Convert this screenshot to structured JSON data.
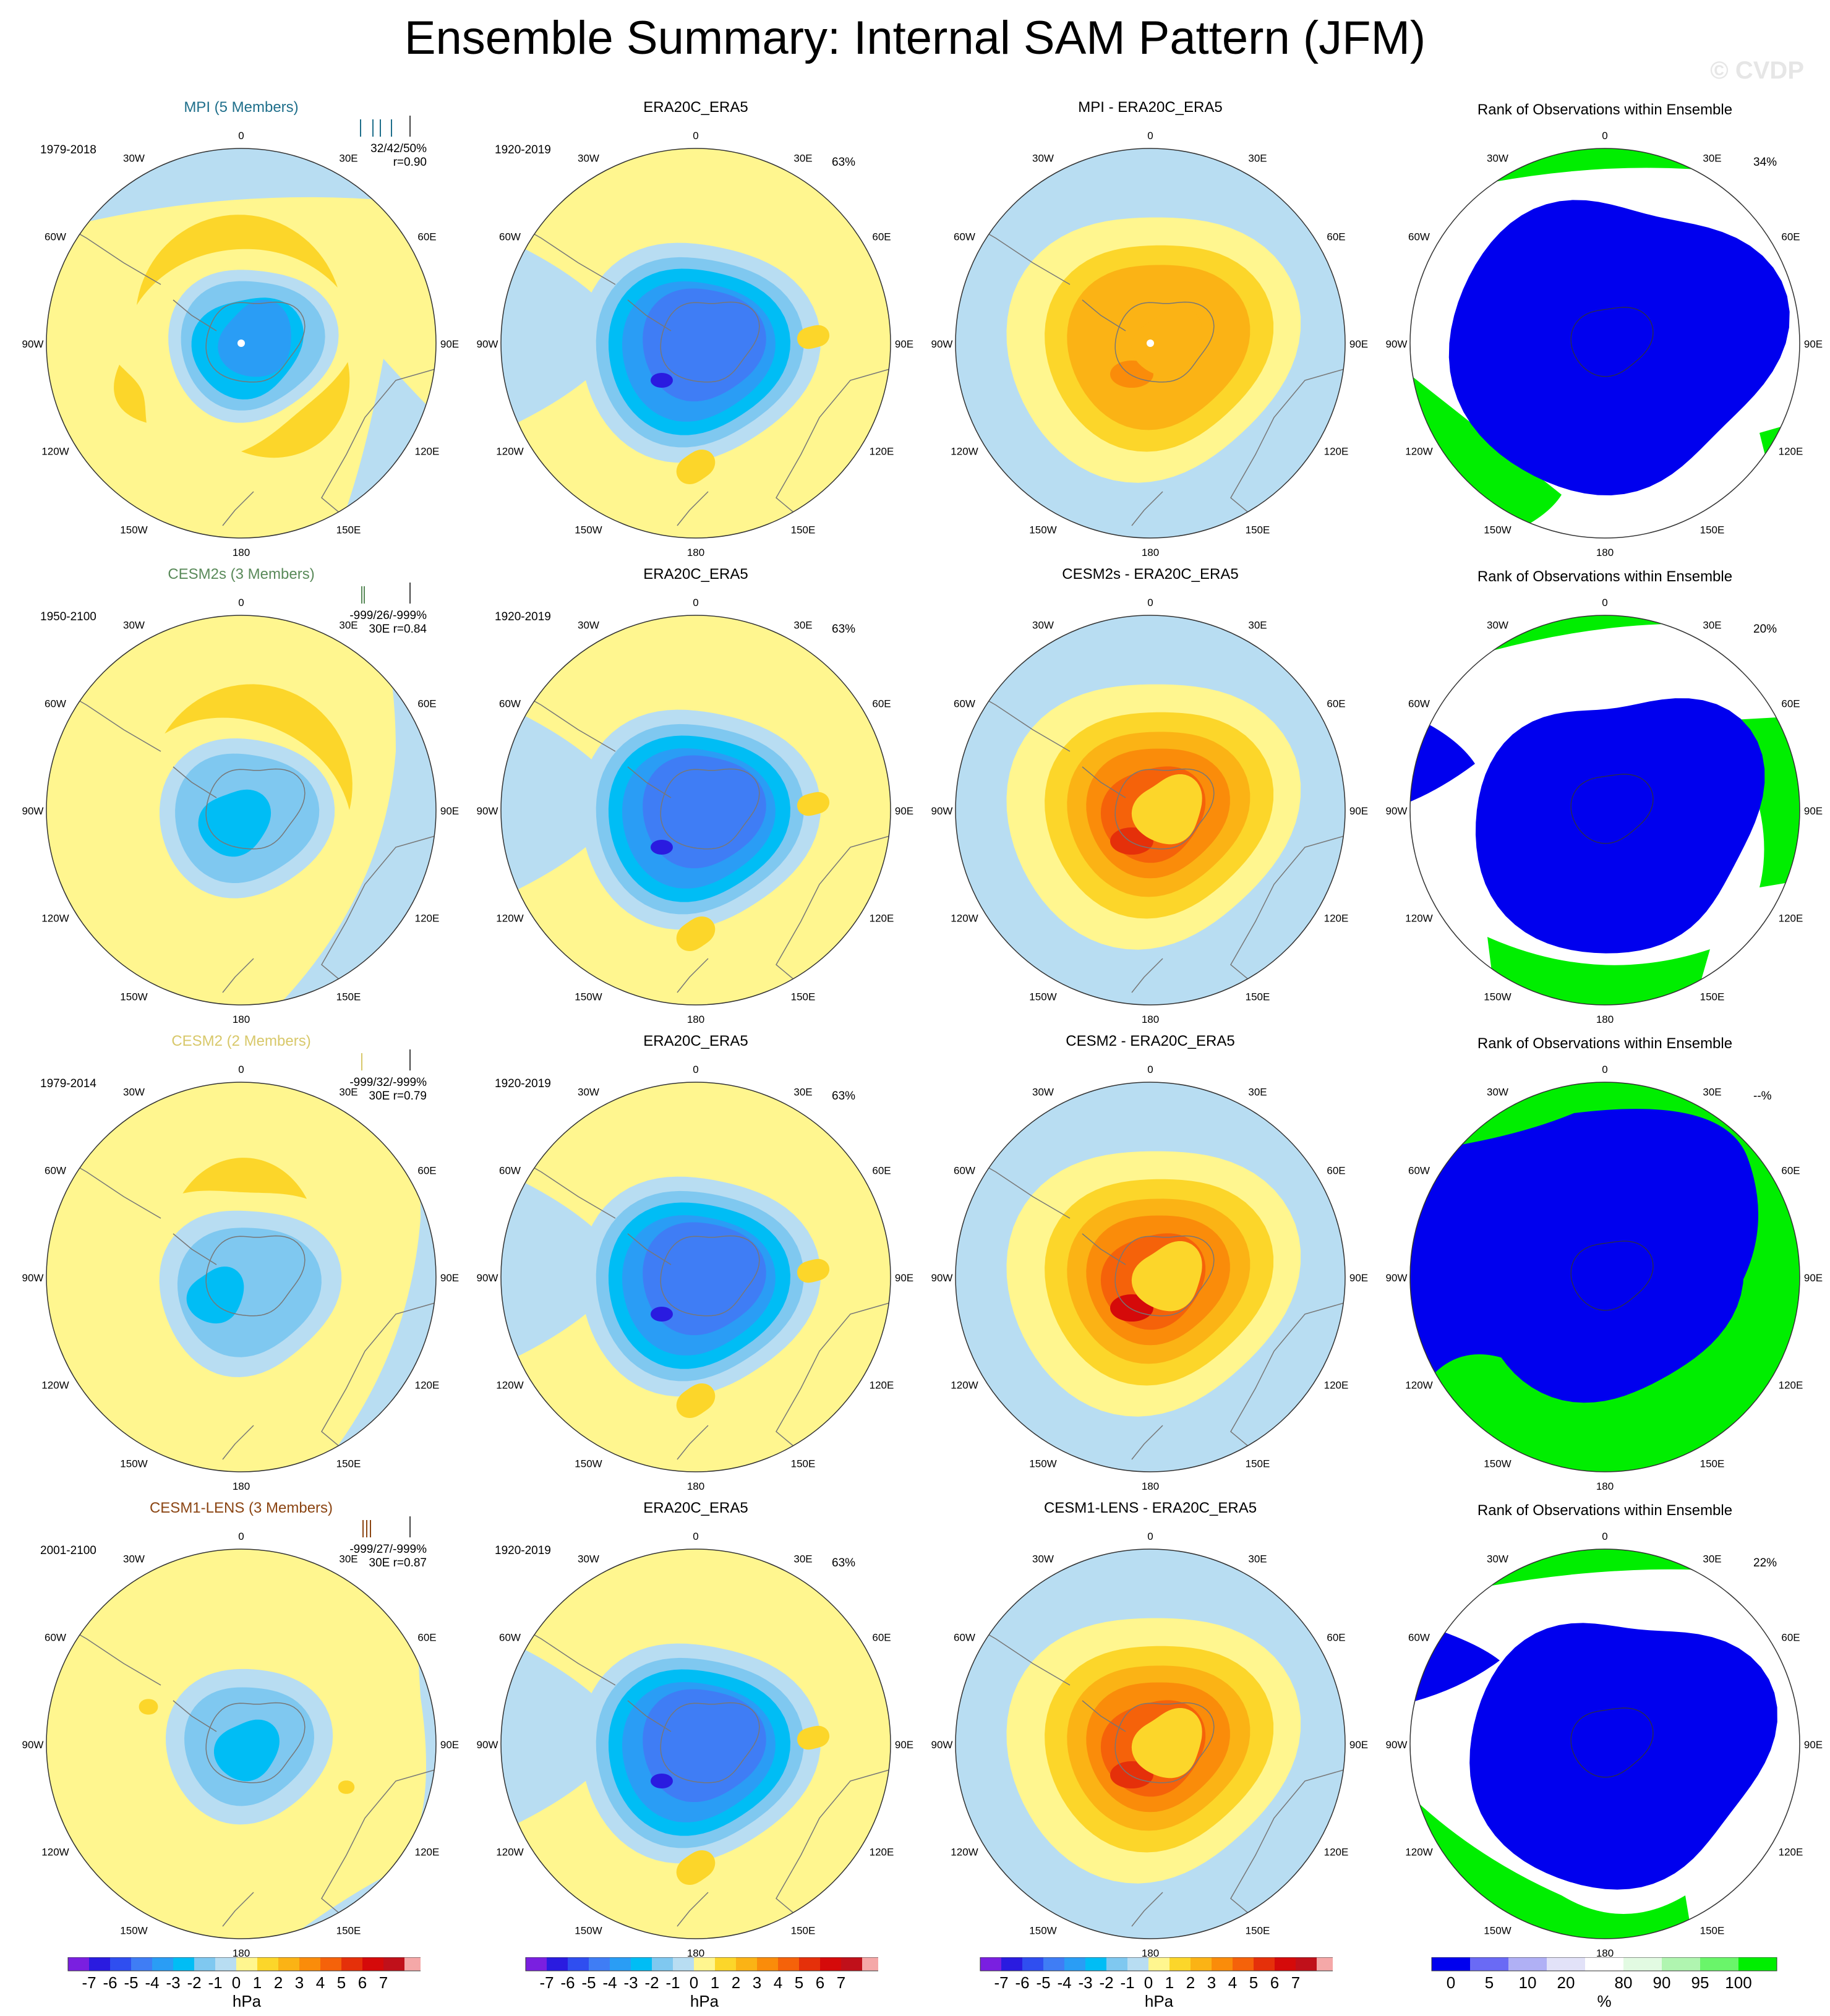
{
  "title": "Ensemble Summary: Internal SAM Pattern (JFM)",
  "watermark": "© CVDP",
  "lon_labels": [
    "0",
    "30E",
    "60E",
    "90E",
    "120E",
    "150E",
    "180",
    "150W",
    "120W",
    "90W",
    "60W",
    "30W"
  ],
  "rows": [
    {
      "model": {
        "label": "MPI (5 Members)",
        "color": "#1f6f8b",
        "period": "1979-2018",
        "stats_line1": "32/42/50%",
        "stats_line2": "r=0.90",
        "pattern": "mpi"
      },
      "obs": {
        "label": "ERA20C_ERA5",
        "period": "1920-2019",
        "pct": "63%"
      },
      "diff": {
        "label": "MPI - ERA20C_ERA5"
      },
      "rank": {
        "label": "Rank of Observations within Ensemble",
        "pct": "34%",
        "pattern": "r1"
      }
    },
    {
      "model": {
        "label": "CESM2s (3 Members)",
        "color": "#5a8a5a",
        "period": "1950-2100",
        "stats_line1": "-999/26/-999%",
        "stats_line2": "30E r=0.84",
        "pattern": "cesm2s"
      },
      "obs": {
        "label": "ERA20C_ERA5",
        "period": "1920-2019",
        "pct": "63%"
      },
      "diff": {
        "label": "CESM2s - ERA20C_ERA5"
      },
      "rank": {
        "label": "Rank of Observations within Ensemble",
        "pct": "20%",
        "pattern": "r2"
      }
    },
    {
      "model": {
        "label": "CESM2 (2 Members)",
        "color": "#d8c86a",
        "period": "1979-2014",
        "stats_line1": "-999/32/-999%",
        "stats_line2": "30E r=0.79",
        "pattern": "cesm2"
      },
      "obs": {
        "label": "ERA20C_ERA5",
        "period": "1920-2019",
        "pct": "63%"
      },
      "diff": {
        "label": "CESM2 - ERA20C_ERA5"
      },
      "rank": {
        "label": "Rank of Observations within Ensemble",
        "pct": "--%",
        "pattern": "r3"
      }
    },
    {
      "model": {
        "label": "CESM1-LENS (3 Members)",
        "color": "#8b4513",
        "period": "2001-2100",
        "stats_line1": "-999/27/-999%",
        "stats_line2": "30E r=0.87",
        "pattern": "cesm1"
      },
      "obs": {
        "label": "ERA20C_ERA5",
        "period": "1920-2019",
        "pct": "63%"
      },
      "diff": {
        "label": "CESM1-LENS - ERA20C_ERA5"
      },
      "rank": {
        "label": "Rank of Observations within Ensemble",
        "pct": "22%",
        "pattern": "r4"
      }
    }
  ],
  "colorbar_hpa": {
    "unit": "hPa",
    "ticks": [
      "-7",
      "-6",
      "-5",
      "-4",
      "-3",
      "-2",
      "-1",
      "0",
      "1",
      "2",
      "3",
      "4",
      "5",
      "6",
      "7"
    ],
    "colors": [
      "#7a1fe0",
      "#2a1be0",
      "#2f4ef0",
      "#3f7df5",
      "#2a9df5",
      "#00bdf5",
      "#7fc8f0",
      "#b8ddf2",
      "#fff68f",
      "#fcd62a",
      "#fbb315",
      "#fa8c0a",
      "#f5620a",
      "#e5300a",
      "#d50a0a",
      "#c0101a",
      "#f5a8a8"
    ]
  },
  "colorbar_rank": {
    "unit": "%",
    "ticks": [
      "0",
      "5",
      "10",
      "20",
      "80",
      "90",
      "95",
      "100"
    ],
    "colors": [
      "#0000ee",
      "#6a6af5",
      "#b0b0f5",
      "#e2e2f8",
      "#ffffff",
      "#e2fae2",
      "#b0f5b0",
      "#6af56a",
      "#00ee00"
    ]
  },
  "legend": {
    "hpa": "hPa",
    "pct": "%"
  }
}
